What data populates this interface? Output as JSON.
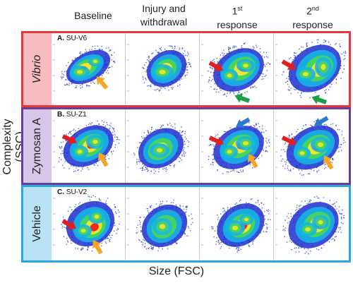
{
  "column_headers": {
    "baseline": "Baseline",
    "injury_line1": "Injury and",
    "injury_line2": "withdrawal",
    "first_num": "1",
    "first_sup": "st",
    "first_word": "response",
    "second_num": "2",
    "second_sup": "nd",
    "second_word": "response"
  },
  "y_axis_title": "Complexity (SSC)",
  "x_axis_title": "Size (FSC)",
  "groups": [
    {
      "key": "vibrio",
      "label": "Vibrio",
      "panel_letter": "A.",
      "panel_id": "SU-V6",
      "border_color": "#e8383d",
      "side_color": "#f7bcc0",
      "italic": true
    },
    {
      "key": "zymosan",
      "label": "Zymosan A",
      "panel_letter": "B.",
      "panel_id": "SU-Z1",
      "border_color": "#6a3d96",
      "side_color": "#d8c6e8",
      "italic": false
    },
    {
      "key": "vehicle",
      "label": "Vehicle",
      "panel_letter": "C.",
      "panel_id": "SU-V2",
      "border_color": "#2aa7e0",
      "side_color": "#b9e2f5",
      "italic": false
    }
  ],
  "arrow_colors": {
    "red": "#e02020",
    "orange": "#f5a623",
    "green": "#1f9e4a",
    "blue": "#2f78d2"
  },
  "density_colors": [
    "#1c2fd0",
    "#15b4e6",
    "#49d65a",
    "#f2e52c",
    "#ef2a1c"
  ]
}
